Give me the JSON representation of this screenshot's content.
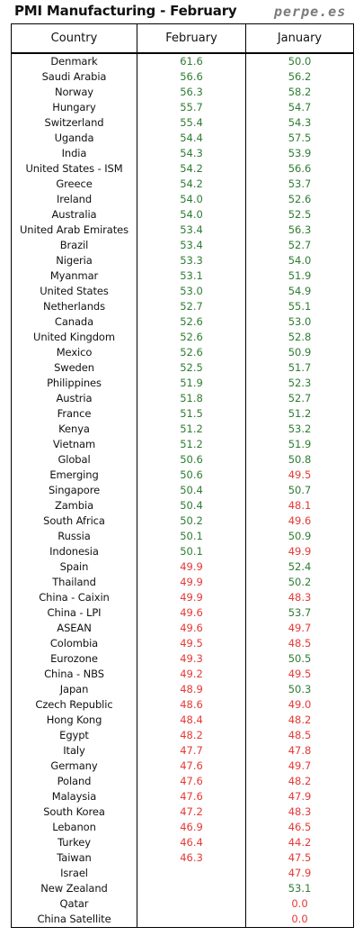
{
  "header": {
    "title": "PMI Manufacturing - February",
    "brand": "perpe.es"
  },
  "colors": {
    "above50": "#2e7d32",
    "below50": "#e53935",
    "text": "#111111"
  },
  "chart_data": {
    "type": "table",
    "columns": [
      "Country",
      "February",
      "January"
    ],
    "threshold": 50.0,
    "rows": [
      [
        "Denmark",
        "61.6",
        "50.0"
      ],
      [
        "Saudi Arabia",
        "56.6",
        "56.2"
      ],
      [
        "Norway",
        "56.3",
        "58.2"
      ],
      [
        "Hungary",
        "55.7",
        "54.7"
      ],
      [
        "Switzerland",
        "55.4",
        "54.3"
      ],
      [
        "Uganda",
        "54.4",
        "57.5"
      ],
      [
        "India",
        "54.3",
        "53.9"
      ],
      [
        "United States - ISM",
        "54.2",
        "56.6"
      ],
      [
        "Greece",
        "54.2",
        "53.7"
      ],
      [
        "Ireland",
        "54.0",
        "52.6"
      ],
      [
        "Australia",
        "54.0",
        "52.5"
      ],
      [
        "United Arab Emirates",
        "53.4",
        "56.3"
      ],
      [
        "Brazil",
        "53.4",
        "52.7"
      ],
      [
        "Nigeria",
        "53.3",
        "54.0"
      ],
      [
        "Myanmar",
        "53.1",
        "51.9"
      ],
      [
        "United States",
        "53.0",
        "54.9"
      ],
      [
        "Netherlands",
        "52.7",
        "55.1"
      ],
      [
        "Canada",
        "52.6",
        "53.0"
      ],
      [
        "United Kingdom",
        "52.6",
        "52.8"
      ],
      [
        "Mexico",
        "52.6",
        "50.9"
      ],
      [
        "Sweden",
        "52.5",
        "51.7"
      ],
      [
        "Philippines",
        "51.9",
        "52.3"
      ],
      [
        "Austria",
        "51.8",
        "52.7"
      ],
      [
        "France",
        "51.5",
        "51.2"
      ],
      [
        "Kenya",
        "51.2",
        "53.2"
      ],
      [
        "Vietnam",
        "51.2",
        "51.9"
      ],
      [
        "Global",
        "50.6",
        "50.8"
      ],
      [
        "Emerging",
        "50.6",
        "49.5"
      ],
      [
        "Singapore",
        "50.4",
        "50.7"
      ],
      [
        "Zambia",
        "50.4",
        "48.1"
      ],
      [
        "South Africa",
        "50.2",
        "49.6"
      ],
      [
        "Russia",
        "50.1",
        "50.9"
      ],
      [
        "Indonesia",
        "50.1",
        "49.9"
      ],
      [
        "Spain",
        "49.9",
        "52.4"
      ],
      [
        "Thailand",
        "49.9",
        "50.2"
      ],
      [
        "China - Caixin",
        "49.9",
        "48.3"
      ],
      [
        "China - LPI",
        "49.6",
        "53.7"
      ],
      [
        "ASEAN",
        "49.6",
        "49.7"
      ],
      [
        "Colombia",
        "49.5",
        "48.5"
      ],
      [
        "Eurozone",
        "49.3",
        "50.5"
      ],
      [
        "China - NBS",
        "49.2",
        "49.5"
      ],
      [
        "Japan",
        "48.9",
        "50.3"
      ],
      [
        "Czech Republic",
        "48.6",
        "49.0"
      ],
      [
        "Hong Kong",
        "48.4",
        "48.2"
      ],
      [
        "Egypt",
        "48.2",
        "48.5"
      ],
      [
        "Italy",
        "47.7",
        "47.8"
      ],
      [
        "Germany",
        "47.6",
        "49.7"
      ],
      [
        "Poland",
        "47.6",
        "48.2"
      ],
      [
        "Malaysia",
        "47.6",
        "47.9"
      ],
      [
        "South Korea",
        "47.2",
        "48.3"
      ],
      [
        "Lebanon",
        "46.9",
        "46.5"
      ],
      [
        "Turkey",
        "46.4",
        "44.2"
      ],
      [
        "Taiwan",
        "46.3",
        "47.5"
      ],
      [
        "Israel",
        "",
        "47.9"
      ],
      [
        "New Zealand",
        "",
        "53.1"
      ],
      [
        "Qatar",
        "",
        "0.0"
      ],
      [
        "China Satellite",
        "",
        "0.0"
      ]
    ]
  }
}
